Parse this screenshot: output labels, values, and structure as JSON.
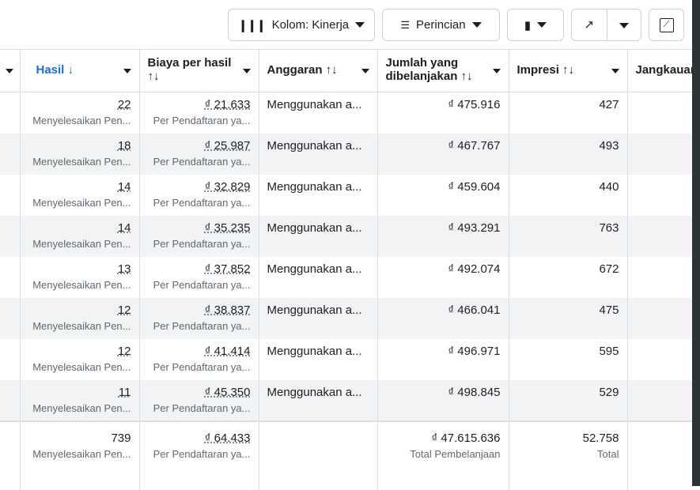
{
  "toolbar": {
    "columns": "Kolom: Kinerja",
    "breakdown": "Perincian"
  },
  "headers": {
    "results": "Hasil ↓",
    "cost": "Biaya per hasil",
    "cost_sort": "↑↓",
    "budget": "Anggaran ↑↓",
    "spent": "Jumlah yang",
    "spent2": "dibelanjakan ↑↓",
    "impressions": "Impresi ↑↓",
    "reach": "Jangkauan"
  },
  "rows": [
    {
      "results": "22",
      "results_sub": "Menyelesaikan Pen...",
      "cost": "₫ 21.633",
      "cost_sub": "Per Pendaftaran ya...",
      "budget": "Menggunakan a...",
      "spent": "₫ 475.916",
      "impressions": "427"
    },
    {
      "results": "18",
      "results_sub": "Menyelesaikan Pen...",
      "cost": "₫ 25.987",
      "cost_sub": "Per Pendaftaran ya...",
      "budget": "Menggunakan a...",
      "spent": "₫ 467.767",
      "impressions": "493"
    },
    {
      "results": "14",
      "results_sub": "Menyelesaikan Pen...",
      "cost": "₫ 32.829",
      "cost_sub": "Per Pendaftaran ya...",
      "budget": "Menggunakan a...",
      "spent": "₫ 459.604",
      "impressions": "440"
    },
    {
      "results": "14",
      "results_sub": "Menyelesaikan Pen...",
      "cost": "₫ 35.235",
      "cost_sub": "Per Pendaftaran ya...",
      "budget": "Menggunakan a...",
      "spent": "₫ 493.291",
      "impressions": "763"
    },
    {
      "results": "13",
      "results_sub": "Menyelesaikan Pen...",
      "cost": "₫ 37.852",
      "cost_sub": "Per Pendaftaran ya...",
      "budget": "Menggunakan a...",
      "spent": "₫ 492.074",
      "impressions": "672"
    },
    {
      "results": "12",
      "results_sub": "Menyelesaikan Pen...",
      "cost": "₫ 38.837",
      "cost_sub": "Per Pendaftaran ya...",
      "budget": "Menggunakan a...",
      "spent": "₫ 466.041",
      "impressions": "475"
    },
    {
      "results": "12",
      "results_sub": "Menyelesaikan Pen...",
      "cost": "₫ 41.414",
      "cost_sub": "Per Pendaftaran ya...",
      "budget": "Menggunakan a...",
      "spent": "₫ 496.971",
      "impressions": "595"
    },
    {
      "results": "11",
      "results_sub": "Menyelesaikan Pen...",
      "cost": "₫ 45.350",
      "cost_sub": "Per Pendaftaran ya...",
      "budget": "Menggunakan a...",
      "spent": "₫ 498.845",
      "impressions": "529"
    }
  ],
  "summary": {
    "results": "739",
    "results_sub": "Menyelesaikan Pen...",
    "cost": "₫ 64.433",
    "cost_sub": "Per Pendaftaran ya...",
    "spent": "₫ 47.615.636",
    "spent_sub": "Total Pembelanjaan",
    "impressions": "52.758",
    "impressions_sub": "Total"
  }
}
